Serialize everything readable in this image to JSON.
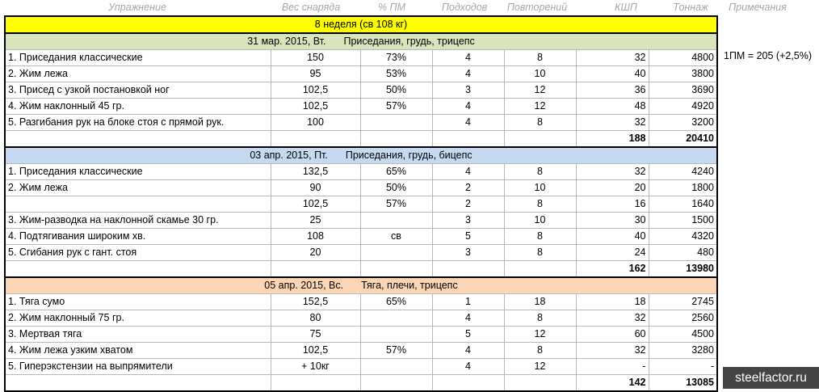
{
  "headers": [
    "Упражнение",
    "Вес снаряда",
    "% ПМ",
    "Подходов",
    "Повторений",
    "КШП",
    "Тоннаж",
    "Примечания"
  ],
  "week_title": "8 неделя (св 108 кг)",
  "note": "1ПМ = 205 (+2,5%)",
  "watermark": "steelfactor.ru",
  "colors": {
    "week": "#ffff00",
    "day1": "#d8e4bc",
    "day2": "#c5d9f1",
    "day3": "#fcd5b4"
  },
  "days": [
    {
      "date": "31 мар. 2015, Вт.",
      "focus": "Приседания, грудь, трицепс",
      "rows": [
        {
          "exercise": "1. Приседания классические",
          "weight": "150",
          "pm": "73%",
          "sets": "4",
          "reps": "8",
          "kshp": "32",
          "tonnage": "4800"
        },
        {
          "exercise": "2. Жим лежа",
          "weight": "95",
          "pm": "53%",
          "sets": "4",
          "reps": "10",
          "kshp": "40",
          "tonnage": "3800"
        },
        {
          "exercise": "3. Присед с узкой постановкой ног",
          "weight": "102,5",
          "pm": "50%",
          "sets": "3",
          "reps": "12",
          "kshp": "36",
          "tonnage": "3690"
        },
        {
          "exercise": "4. Жим наклонный 45 гр.",
          "weight": "102,5",
          "pm": "57%",
          "sets": "4",
          "reps": "12",
          "kshp": "48",
          "tonnage": "4920"
        },
        {
          "exercise": "5. Разгибания рук на блоке стоя с прямой рук.",
          "weight": "100",
          "pm": "",
          "sets": "4",
          "reps": "8",
          "kshp": "32",
          "tonnage": "3200"
        }
      ],
      "total_kshp": "188",
      "total_tonnage": "20410"
    },
    {
      "date": "03 апр. 2015, Пт.",
      "focus": "Приседания, грудь, бицепс",
      "rows": [
        {
          "exercise": "1. Приседания классические",
          "weight": "132,5",
          "pm": "65%",
          "sets": "4",
          "reps": "8",
          "kshp": "32",
          "tonnage": "4240"
        },
        {
          "exercise": "2. Жим лежа",
          "weight": "90",
          "pm": "50%",
          "sets": "2",
          "reps": "10",
          "kshp": "20",
          "tonnage": "1800"
        },
        {
          "exercise": "",
          "weight": "102,5",
          "pm": "57%",
          "sets": "2",
          "reps": "8",
          "kshp": "16",
          "tonnage": "1640"
        },
        {
          "exercise": "3. Жим-разводка на наклонной скамье 30 гр.",
          "weight": "25",
          "pm": "",
          "sets": "3",
          "reps": "10",
          "kshp": "30",
          "tonnage": "1500"
        },
        {
          "exercise": "4. Подтягивания широким хв.",
          "weight": "108",
          "pm": "св",
          "sets": "5",
          "reps": "8",
          "kshp": "40",
          "tonnage": "4320"
        },
        {
          "exercise": "5. Сгибания рук с гант. стоя",
          "weight": "20",
          "pm": "",
          "sets": "3",
          "reps": "8",
          "kshp": "24",
          "tonnage": "480"
        }
      ],
      "total_kshp": "162",
      "total_tonnage": "13980"
    },
    {
      "date": "05 апр. 2015, Вс.",
      "focus": "Тяга, плечи, трицепс",
      "rows": [
        {
          "exercise": "1. Тяга сумо",
          "weight": "152,5",
          "pm": "65%",
          "sets": "1",
          "reps": "18",
          "kshp": "18",
          "tonnage": "2745"
        },
        {
          "exercise": "2. Жим наклонный 75 гр.",
          "weight": "80",
          "pm": "",
          "sets": "4",
          "reps": "8",
          "kshp": "32",
          "tonnage": "2560"
        },
        {
          "exercise": "3. Мертвая тяга",
          "weight": "75",
          "pm": "",
          "sets": "5",
          "reps": "12",
          "kshp": "60",
          "tonnage": "4500"
        },
        {
          "exercise": "4. Жим лежа узким хватом",
          "weight": "102,5",
          "pm": "57%",
          "sets": "4",
          "reps": "8",
          "kshp": "32",
          "tonnage": "3280"
        },
        {
          "exercise": "5. Гиперэкстензии на выпрямители",
          "weight": "+ 10кг",
          "pm": "",
          "sets": "4",
          "reps": "12",
          "kshp": "-",
          "tonnage": "-"
        }
      ],
      "total_kshp": "142",
      "total_tonnage": "13085"
    }
  ]
}
